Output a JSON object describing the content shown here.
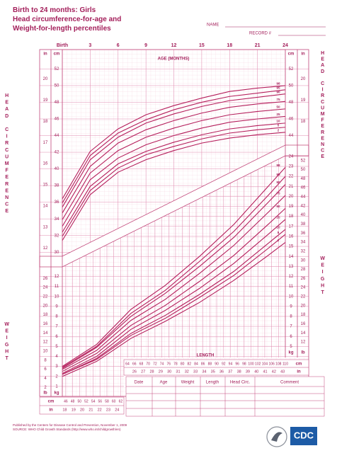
{
  "header": {
    "title": [
      "Birth to 24 months: Girls",
      "Head circumference-for-age and",
      "Weight-for-length percentiles"
    ],
    "name": "NAME",
    "record": "RECORD #"
  },
  "chart_data": [
    {
      "type": "line",
      "x_label": "AGE (MONTHS)",
      "y_label": "HEAD CIRCUMFERENCE",
      "y_unit": "cm",
      "y2_unit": "in",
      "x": [
        0,
        3,
        6,
        9,
        12,
        15,
        18,
        21,
        24
      ],
      "xlim": [
        0,
        24
      ],
      "xticks": [
        {
          "value": 0,
          "label": "Birth"
        },
        3,
        6,
        9,
        12,
        15,
        18,
        21,
        24
      ],
      "ylim": [
        29,
        54.5
      ],
      "yticks": [
        30,
        32,
        34,
        36,
        38,
        40,
        42,
        44,
        46,
        48,
        50,
        52
      ],
      "y2lim": [
        11.42,
        21.46
      ],
      "y2ticks": [
        12,
        13,
        14,
        15,
        16,
        17,
        18,
        19,
        20
      ],
      "series": [
        {
          "name": "98",
          "color": "#b51f5c",
          "values": [
            36.4,
            42.1,
            44.8,
            46.5,
            47.6,
            48.5,
            49.3,
            49.7,
            50.0
          ]
        },
        {
          "name": "95",
          "color": "#b51f5c",
          "values": [
            35.9,
            41.6,
            44.3,
            45.9,
            47.1,
            48.0,
            48.7,
            49.1,
            49.5
          ]
        },
        {
          "name": "90",
          "color": "#b51f5c",
          "values": [
            35.4,
            41.1,
            43.8,
            45.5,
            46.6,
            47.5,
            48.2,
            48.6,
            49.0
          ]
        },
        {
          "name": "75",
          "color": "#b51f5c",
          "values": [
            34.7,
            40.3,
            43.1,
            44.7,
            45.8,
            46.7,
            47.4,
            47.8,
            48.1
          ]
        },
        {
          "name": "50",
          "color": "#b51f5c",
          "values": [
            33.9,
            39.5,
            42.2,
            43.8,
            44.9,
            45.8,
            46.5,
            46.9,
            47.2
          ]
        },
        {
          "name": "25",
          "color": "#b51f5c",
          "values": [
            33.1,
            38.7,
            41.3,
            42.9,
            44.0,
            44.9,
            45.6,
            46.0,
            46.3
          ]
        },
        {
          "name": "10",
          "color": "#b51f5c",
          "values": [
            32.4,
            37.9,
            40.6,
            42.1,
            43.2,
            44.1,
            44.8,
            45.2,
            45.5
          ]
        },
        {
          "name": "5",
          "color": "#b51f5c",
          "values": [
            31.9,
            37.4,
            40.1,
            41.7,
            42.7,
            43.6,
            44.3,
            44.7,
            45.0
          ]
        },
        {
          "name": "2",
          "color": "#b51f5c",
          "values": [
            31.4,
            36.9,
            39.6,
            41.1,
            42.2,
            43.1,
            43.7,
            44.1,
            44.4
          ]
        }
      ]
    },
    {
      "type": "line",
      "x_label": "LENGTH",
      "y_label": "WEIGHT",
      "x_unit": "cm",
      "x2_unit": "in",
      "y_unit": "kg",
      "y2_unit": "lb",
      "x": [
        45,
        55,
        65,
        75,
        85,
        95,
        105,
        110
      ],
      "xlim": [
        45,
        110
      ],
      "xticks": [
        46,
        48,
        50,
        52,
        54,
        56,
        58,
        60,
        62,
        64,
        66,
        68,
        70,
        72,
        74,
        76,
        78,
        80,
        82,
        84,
        86,
        88,
        90,
        92,
        94,
        96,
        98,
        100,
        102,
        104,
        106,
        108,
        110
      ],
      "x2lim": [
        17.72,
        43.31
      ],
      "x2ticks": [
        18,
        19,
        20,
        21,
        22,
        23,
        24,
        26,
        27,
        28,
        29,
        30,
        31,
        32,
        33,
        34,
        35,
        36,
        37,
        38,
        39,
        40,
        41,
        42,
        43
      ],
      "ylim": [
        0,
        24.7
      ],
      "yticks": [
        1,
        2,
        3,
        4,
        5,
        6,
        7,
        8,
        9,
        10,
        11,
        12,
        13,
        14,
        15,
        16,
        17,
        18,
        19,
        20,
        21,
        22,
        23,
        24
      ],
      "y2lim": [
        0,
        54.45
      ],
      "y2ticks": [
        2,
        4,
        6,
        8,
        10,
        12,
        14,
        16,
        18,
        20,
        22,
        24,
        26,
        28,
        30,
        32,
        34,
        36,
        38,
        40,
        42,
        44,
        46,
        48,
        50,
        52
      ],
      "series": [
        {
          "name": "98",
          "color": "#b51f5c",
          "values": [
            3.0,
            5.2,
            8.7,
            11.1,
            14.0,
            17.2,
            21.0,
            22.9
          ]
        },
        {
          "name": "95",
          "color": "#b51f5c",
          "values": [
            2.9,
            5.0,
            8.3,
            10.6,
            13.5,
            16.5,
            20.1,
            22.0
          ]
        },
        {
          "name": "90",
          "color": "#b51f5c",
          "values": [
            2.8,
            4.9,
            8.0,
            10.3,
            13.0,
            15.9,
            19.4,
            21.2
          ]
        },
        {
          "name": "75",
          "color": "#b51f5c",
          "values": [
            2.7,
            4.6,
            7.6,
            9.7,
            12.3,
            15.1,
            18.4,
            20.1
          ]
        },
        {
          "name": "50",
          "color": "#b51f5c",
          "values": [
            2.5,
            4.3,
            7.1,
            9.1,
            11.5,
            14.1,
            17.2,
            18.8
          ]
        },
        {
          "name": "25",
          "color": "#b51f5c",
          "values": [
            2.3,
            4.0,
            6.7,
            8.6,
            10.8,
            13.3,
            16.2,
            17.7
          ]
        },
        {
          "name": "10",
          "color": "#b51f5c",
          "values": [
            2.2,
            3.8,
            6.3,
            8.1,
            10.2,
            12.5,
            15.3,
            16.7
          ]
        },
        {
          "name": "5",
          "color": "#b51f5c",
          "values": [
            2.2,
            3.7,
            6.1,
            7.8,
            9.9,
            12.1,
            14.8,
            16.2
          ]
        },
        {
          "name": "2",
          "color": "#b51f5c",
          "values": [
            2.0,
            3.5,
            5.8,
            7.5,
            9.4,
            11.6,
            14.1,
            15.4
          ]
        }
      ]
    }
  ],
  "table": {
    "columns": [
      "Date",
      "Age",
      "Weight",
      "Length",
      "Head Circ.",
      "Comment"
    ]
  },
  "footer": {
    "published": "Published by the Centers for Disease Control and Prevention, November 1, 2009",
    "source": "SOURCE: WHO Child Growth Standards (http://www.who.int/childgrowth/en)",
    "logo": "CDC"
  }
}
